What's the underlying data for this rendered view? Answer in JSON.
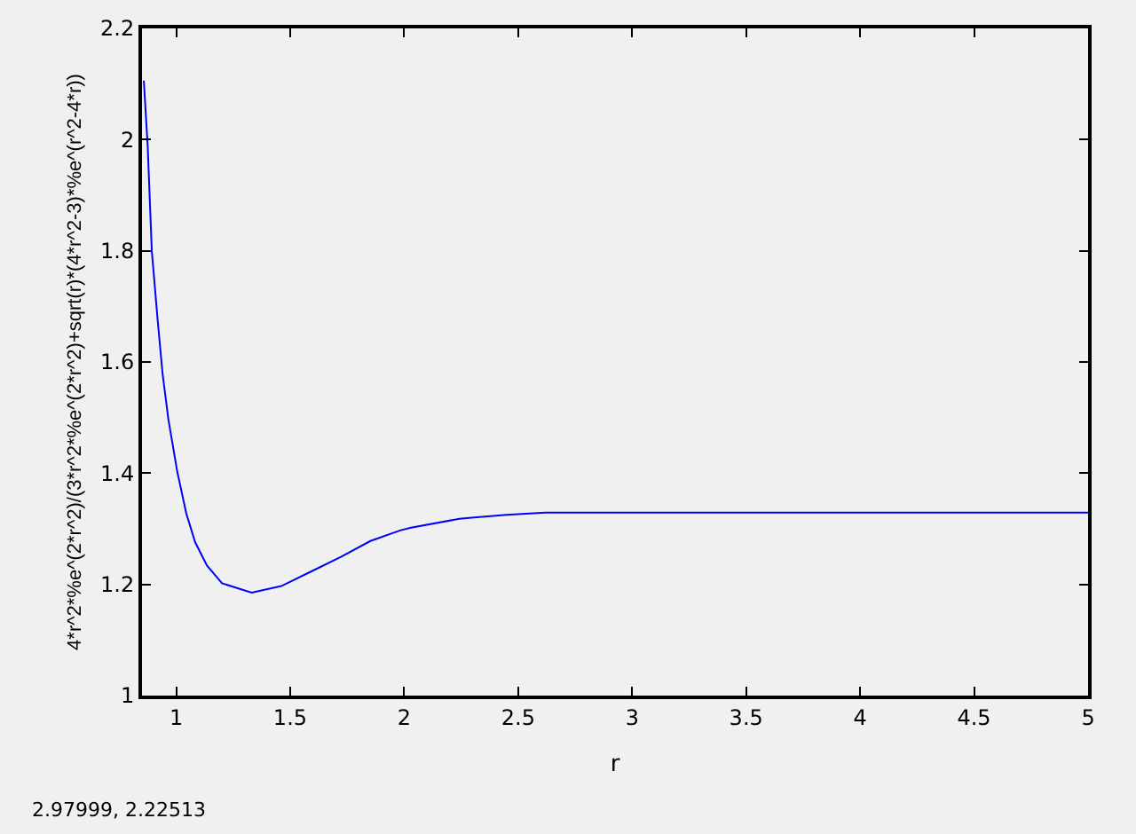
{
  "chart_data": {
    "type": "line",
    "xlabel": "r",
    "ylabel": "4*r^2*%e^(2*r^2)/(3*r^2*%e^(2*r^2)+sqrt(r)*(4*r^2-3)*%e^(r^2-4*r))",
    "x": [
      0.858,
      0.875,
      0.893,
      0.919,
      0.94,
      0.966,
      1.005,
      1.044,
      1.083,
      1.135,
      1.201,
      1.331,
      1.461,
      1.591,
      1.721,
      1.852,
      1.982,
      2.03,
      2.242,
      2.294,
      2.45,
      2.62,
      3,
      4,
      5
    ],
    "series": [
      {
        "color": "#0000ff",
        "values": [
          2.106,
          1.988,
          1.8,
          1.674,
          1.58,
          1.496,
          1.402,
          1.328,
          1.276,
          1.234,
          1.202,
          1.185,
          1.197,
          1.223,
          1.249,
          1.278,
          1.297,
          1.302,
          1.318,
          1.32,
          1.325,
          1.329,
          1.329,
          1.329,
          1.329
        ]
      }
    ],
    "xlim": [
      0.85,
      5
    ],
    "xticks": [
      1,
      1.5,
      2,
      2.5,
      3,
      3.5,
      4,
      4.5,
      5
    ],
    "ylim": [
      1,
      2.2
    ],
    "yticks": [
      1,
      1.2,
      1.4,
      1.6,
      1.8,
      2,
      2.2
    ],
    "grid": false,
    "marker": "none",
    "line_style": "solid",
    "annotations": [
      "2.97999, 2.22513"
    ]
  }
}
